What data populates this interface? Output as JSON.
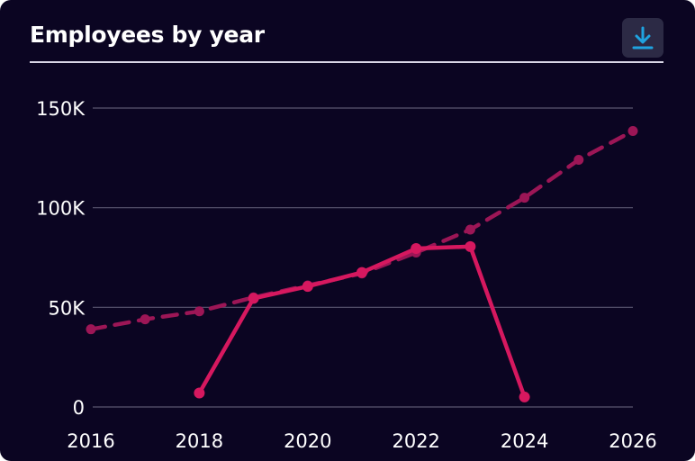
{
  "header": {
    "title": "Employees by year",
    "download_icon": "download-icon"
  },
  "colors": {
    "background": "#0b0522",
    "series": "#d6185f",
    "grid": "#5a5670",
    "accent": "#1fa3e0"
  },
  "chart_data": {
    "type": "line",
    "title": "Employees by year",
    "xlabel": "",
    "ylabel": "",
    "x_ticks": [
      "2016",
      "2018",
      "2020",
      "2022",
      "2024",
      "2026"
    ],
    "y_ticks": [
      "0",
      "50K",
      "100K",
      "150K"
    ],
    "xlim": [
      2016,
      2026
    ],
    "ylim": [
      0,
      150000
    ],
    "grid": true,
    "legend": "none",
    "series": [
      {
        "style": "solid",
        "x": [
          2018,
          2019,
          2020,
          2021,
          2022,
          2023,
          2024
        ],
        "values": [
          7000,
          54500,
          60500,
          67500,
          79500,
          80500,
          5000
        ]
      },
      {
        "style": "dashed",
        "x": [
          2016,
          2017,
          2018,
          2019,
          2020,
          2021,
          2022,
          2023,
          2024,
          2025,
          2026
        ],
        "values": [
          39000,
          44000,
          48000,
          55000,
          61000,
          67000,
          77500,
          89000,
          105000,
          124000,
          138500
        ]
      }
    ]
  }
}
